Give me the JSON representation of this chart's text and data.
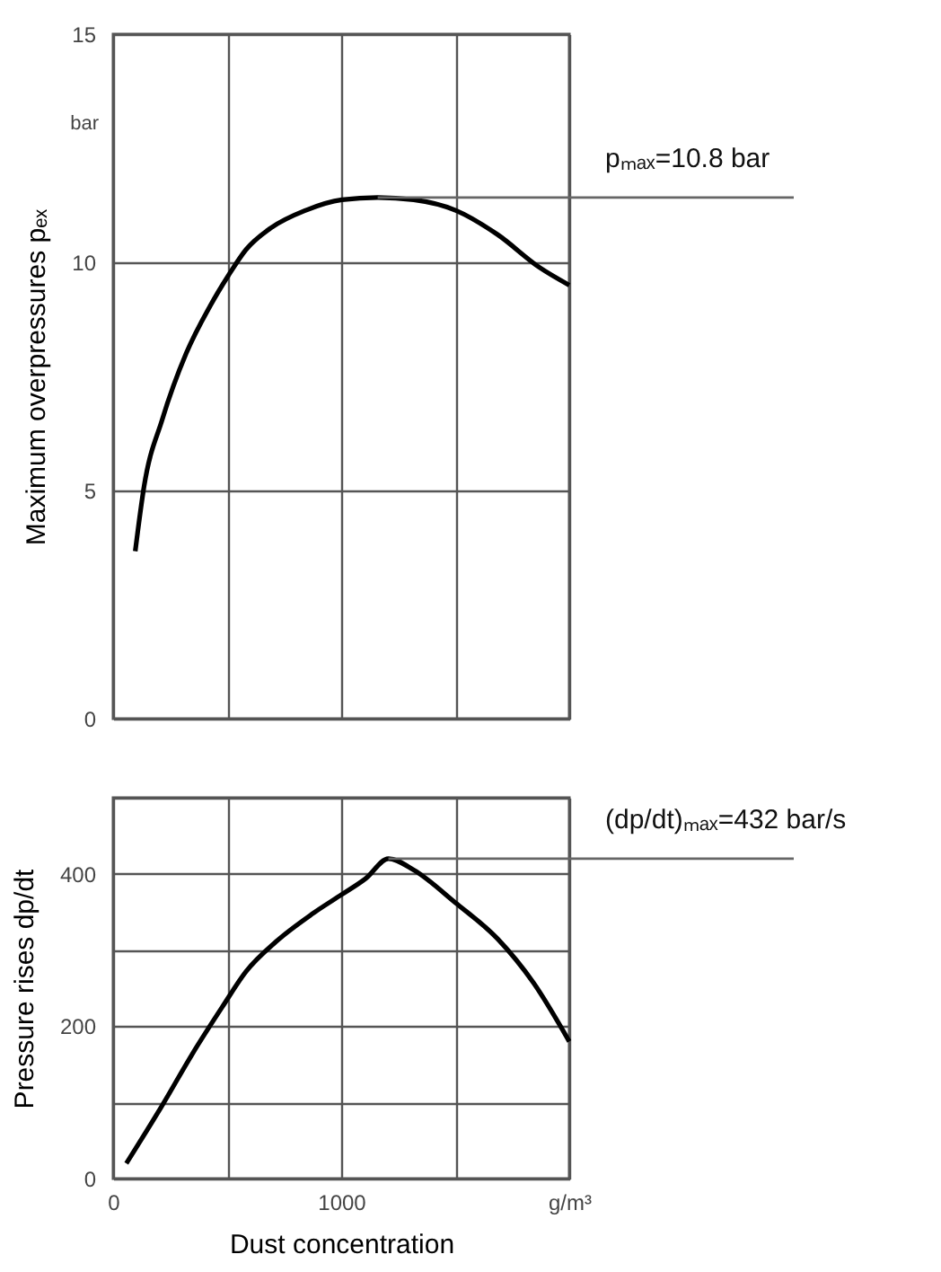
{
  "chart_data": [
    {
      "type": "line",
      "ylabel": "Maximum overpressures  pₑₓ",
      "tick_labels": "y",
      "grid": true,
      "xlim": [
        0,
        2000
      ],
      "xticks": [
        0,
        {
          "value": 500,
          "label": null
        },
        1000,
        {
          "value": 1500,
          "label": null
        },
        2000
      ],
      "ylim": [
        0,
        15
      ],
      "yticks": [
        0,
        5,
        10,
        15
      ],
      "series": [
        {
          "color": "#000000",
          "x": [
            97,
            136,
            215,
            320,
            425,
            504,
            583,
            688,
            845,
            1003,
            1160,
            1318,
            1501,
            1685,
            1869,
            2000
          ],
          "values": [
            3.67,
            5.1,
            6.55,
            8.0,
            9.04,
            9.7,
            10.28,
            10.74,
            11.14,
            11.37,
            11.42,
            11.37,
            11.14,
            10.61,
            9.89,
            9.5
          ]
        }
      ],
      "annotations": [
        "bar",
        {
          "text": "pₘₐₓ=10.8 bar",
          "x": 1160,
          "y": 11.42
        }
      ]
    },
    {
      "type": "line",
      "ylabel": "Pressure rises  dp/dt",
      "xlabel": "Dust concentration",
      "grid": true,
      "xlim": [
        0,
        2000
      ],
      "xticks": [
        0,
        {
          "value": 500,
          "label": null
        },
        1000,
        {
          "value": 1500,
          "label": null
        },
        {
          "value": 2000,
          "label": "g/m³"
        }
      ],
      "ylim": [
        0,
        500
      ],
      "yticks": [
        0,
        {
          "value": 100,
          "label": null
        },
        200,
        {
          "value": 300,
          "label": null
        },
        400,
        {
          "value": 500,
          "label": null
        }
      ],
      "series": [
        {
          "color": "#000000",
          "x": [
            58,
            215,
            346,
            478,
            583,
            714,
            871,
            1003,
            1108,
            1207,
            1318,
            1501,
            1685,
            1843,
            2000
          ],
          "values": [
            20,
            96,
            163,
            225,
            272,
            311,
            347,
            373,
            394,
            420,
            405,
            362,
            315,
            257,
            180
          ]
        }
      ],
      "annotations": [
        {
          "text": "(dp/dt)ₘₐₓ=432 bar/s",
          "x": 1207,
          "y": 420
        }
      ]
    }
  ]
}
